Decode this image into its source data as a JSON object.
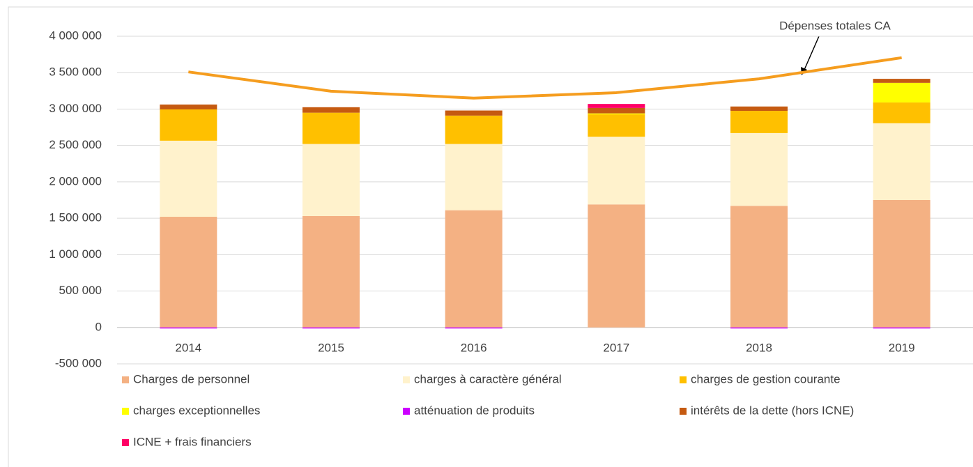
{
  "chart_data": {
    "type": "bar",
    "stacked": true,
    "categories": [
      "2014",
      "2015",
      "2016",
      "2017",
      "2018",
      "2019"
    ],
    "series": [
      {
        "name": "Charges de personnel",
        "color": "#f4b183",
        "values": [
          1520000,
          1530000,
          1610000,
          1690000,
          1670000,
          1750000
        ]
      },
      {
        "name": "charges à caractère général",
        "color": "#fff2cc",
        "values": [
          1045000,
          990000,
          910000,
          930000,
          1000000,
          1055000
        ]
      },
      {
        "name": "charges de gestion courante",
        "color": "#ffc000",
        "values": [
          430000,
          430000,
          390000,
          315000,
          305000,
          285000
        ]
      },
      {
        "name": "charges exceptionnelles",
        "color": "#ffff00",
        "values": [
          0,
          0,
          0,
          5000,
          0,
          270000
        ]
      },
      {
        "name": "atténuation de produits",
        "color": "#cc00ff",
        "values": [
          -10000,
          -10000,
          -10000,
          0,
          -10000,
          -10000
        ]
      },
      {
        "name": "intérêts de la dette (hors ICNE)",
        "color": "#c55a11",
        "values": [
          67000,
          75000,
          70000,
          75000,
          60000,
          55000
        ]
      },
      {
        "name": "ICNE + frais financiers",
        "color": "#ff0066",
        "values": [
          0,
          0,
          0,
          55000,
          0,
          0
        ]
      }
    ],
    "line": {
      "name": "Dépenses totales CA",
      "color": "#f59d1f",
      "values": [
        3510000,
        3245000,
        3150000,
        3225000,
        3415000,
        3705000
      ]
    },
    "ylim": [
      -500000,
      4000000
    ],
    "yticks": [
      {
        "value": -500000,
        "label": "-500 000"
      },
      0,
      {
        "value": 500000,
        "label": "500 000"
      },
      {
        "value": 1000000,
        "label": "1 000 000"
      },
      {
        "value": 1500000,
        "label": "1 500 000"
      },
      {
        "value": 2000000,
        "label": "2 000 000"
      },
      {
        "value": 2500000,
        "label": "2 500 000"
      },
      {
        "value": 3000000,
        "label": "3 000 000"
      },
      {
        "value": 3500000,
        "label": "3 500 000"
      },
      {
        "value": 4000000,
        "label": "4 000 000"
      }
    ],
    "grid": true,
    "legend": "bottom"
  }
}
